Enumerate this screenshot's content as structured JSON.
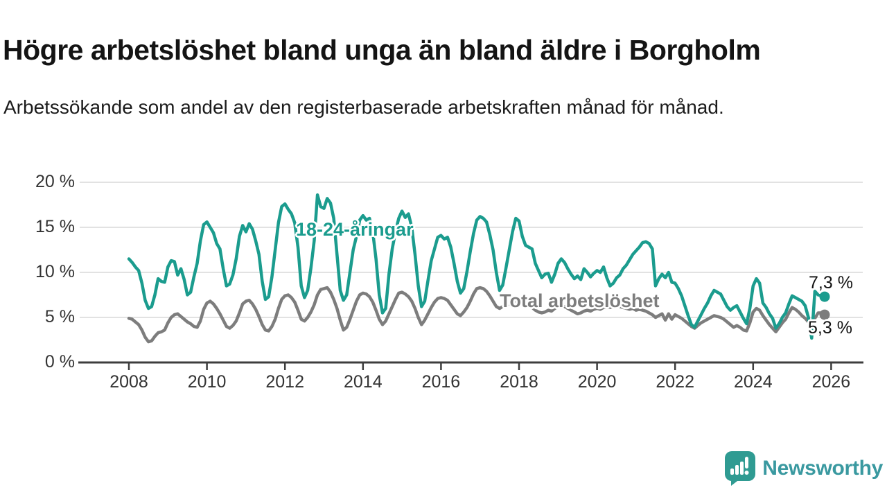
{
  "header": {
    "title": "Högre arbetslöshet bland unga än bland äldre i Borgholm",
    "subtitle": "Arbetssökande som andel av den registerbaserade arbetskraften månad för månad."
  },
  "chart_data": {
    "type": "line",
    "title": "Högre arbetslöshet bland unga än bland äldre i Borgholm",
    "subtitle": "Arbetssökande som andel av den registerbaserade arbetskraften månad för månad.",
    "unit": "%",
    "x_start": "2008-01",
    "x_end": "2025-11",
    "x_tick_labels": [
      "2008",
      "2010",
      "2012",
      "2014",
      "2016",
      "2018",
      "2020",
      "2022",
      "2024",
      "2026"
    ],
    "y_tick_values": [
      0,
      5,
      10,
      15,
      20
    ],
    "y_tick_labels": [
      "0 %",
      "5 %",
      "10 %",
      "15 %",
      "20 %"
    ],
    "ylim": [
      0,
      20
    ],
    "grid": true,
    "legend_position": "inline-labels",
    "series": [
      {
        "id": "youth",
        "label": "18-24-åringar",
        "color": "#1b9c8e",
        "end_label": "7,3 %",
        "end_value": 7.3,
        "values": [
          11.5,
          11.1,
          10.6,
          10.2,
          8.8,
          6.9,
          6.0,
          6.2,
          7.5,
          9.3,
          9.0,
          8.9,
          10.6,
          11.3,
          11.2,
          9.7,
          10.4,
          9.2,
          7.5,
          7.8,
          9.5,
          11.0,
          13.5,
          15.3,
          15.6,
          15.0,
          14.4,
          13.2,
          12.6,
          10.4,
          8.5,
          8.7,
          9.7,
          11.5,
          14.0,
          15.2,
          14.5,
          15.4,
          14.8,
          13.5,
          12.0,
          9.0,
          7.0,
          7.3,
          9.5,
          12.5,
          15.5,
          17.3,
          17.6,
          17.0,
          16.5,
          15.5,
          12.8,
          8.5,
          7.2,
          8.0,
          10.5,
          13.5,
          18.6,
          17.3,
          17.1,
          18.2,
          17.7,
          16.0,
          12.0,
          8.0,
          6.9,
          7.5,
          10.0,
          12.5,
          14.0,
          15.8,
          16.3,
          15.8,
          16.0,
          14.5,
          11.5,
          7.5,
          5.5,
          6.0,
          9.8,
          12.6,
          14.5,
          16.0,
          16.8,
          16.1,
          16.5,
          15.0,
          12.0,
          8.5,
          6.2,
          6.8,
          9.1,
          11.3,
          12.6,
          13.9,
          14.1,
          13.7,
          13.9,
          12.8,
          11.0,
          9.0,
          7.7,
          8.2,
          10.1,
          12.3,
          14.3,
          15.8,
          16.2,
          16.0,
          15.6,
          14.2,
          12.5,
          10.0,
          8.0,
          8.6,
          10.5,
          12.5,
          14.5,
          16.0,
          15.7,
          14.0,
          13.0,
          12.8,
          12.6,
          11.0,
          10.2,
          9.4,
          9.8,
          9.9,
          8.9,
          9.8,
          11.0,
          11.5,
          11.1,
          10.4,
          9.8,
          9.3,
          9.6,
          9.2,
          10.4,
          10.0,
          9.5,
          9.9,
          10.2,
          10.0,
          10.6,
          9.4,
          8.5,
          8.8,
          9.4,
          9.7,
          10.4,
          10.8,
          11.4,
          12.0,
          12.4,
          12.8,
          13.3,
          13.4,
          13.2,
          12.6,
          8.5,
          9.3,
          9.8,
          9.4,
          10.0,
          8.9,
          8.8,
          8.2,
          7.4,
          6.3,
          5.2,
          4.2,
          3.9,
          4.6,
          5.3,
          6.0,
          6.6,
          7.4,
          8.0,
          7.8,
          7.6,
          6.9,
          6.2,
          5.8,
          6.1,
          6.3,
          5.6,
          4.9,
          4.3,
          6.0,
          8.5,
          9.3,
          8.8,
          6.6,
          6.1,
          5.4,
          4.9,
          3.8,
          4.3,
          5.0,
          5.5,
          6.5,
          7.4,
          7.2,
          7.0,
          6.8,
          6.3,
          5.0,
          2.7,
          7.9,
          7.5,
          7.4,
          7.3
        ]
      },
      {
        "id": "total",
        "label": "Total arbetslöshet",
        "color": "#7d7d7d",
        "end_label": "5,3 %",
        "end_value": 5.3,
        "values": [
          4.9,
          4.8,
          4.5,
          4.2,
          3.6,
          2.8,
          2.3,
          2.4,
          2.9,
          3.3,
          3.4,
          3.6,
          4.4,
          5.0,
          5.3,
          5.4,
          5.1,
          4.8,
          4.5,
          4.3,
          4.0,
          3.9,
          4.6,
          5.9,
          6.6,
          6.8,
          6.5,
          6.0,
          5.4,
          4.7,
          4.0,
          3.8,
          4.1,
          4.6,
          5.5,
          6.5,
          6.8,
          6.9,
          6.5,
          5.9,
          5.1,
          4.2,
          3.6,
          3.5,
          4.0,
          4.8,
          6.0,
          7.0,
          7.4,
          7.5,
          7.2,
          6.7,
          5.8,
          4.8,
          4.6,
          5.0,
          5.6,
          6.4,
          7.5,
          8.1,
          8.2,
          8.3,
          7.8,
          7.0,
          6.0,
          4.7,
          3.6,
          3.9,
          4.8,
          5.8,
          6.8,
          7.5,
          7.7,
          7.6,
          7.3,
          6.7,
          5.8,
          4.8,
          4.2,
          4.6,
          5.4,
          6.2,
          7.0,
          7.7,
          7.8,
          7.6,
          7.3,
          6.8,
          6.0,
          5.0,
          4.2,
          4.7,
          5.4,
          6.1,
          6.7,
          7.1,
          7.2,
          7.1,
          6.9,
          6.4,
          5.9,
          5.4,
          5.2,
          5.6,
          6.1,
          6.8,
          7.6,
          8.2,
          8.3,
          8.2,
          7.9,
          7.4,
          6.8,
          6.2,
          6.0,
          6.2,
          6.3,
          6.5,
          6.6,
          6.9,
          7.0,
          6.8,
          6.5,
          6.3,
          6.1,
          5.8,
          5.6,
          5.5,
          5.6,
          5.8,
          5.7,
          6.0,
          6.2,
          6.3,
          6.2,
          6.0,
          5.8,
          5.6,
          5.4,
          5.5,
          5.7,
          5.8,
          5.7,
          5.9,
          6.0,
          5.9,
          6.1,
          6.2,
          6.1,
          6.2,
          6.3,
          6.2,
          6.1,
          6.0,
          5.9,
          6.0,
          5.8,
          5.9,
          5.8,
          5.7,
          5.5,
          5.3,
          5.0,
          5.2,
          5.4,
          4.7,
          5.4,
          4.8,
          5.3,
          5.1,
          4.9,
          4.6,
          4.3,
          4.0,
          3.8,
          4.1,
          4.4,
          4.6,
          4.8,
          5.0,
          5.2,
          5.1,
          5.0,
          4.8,
          4.5,
          4.2,
          3.9,
          4.1,
          3.9,
          3.6,
          3.5,
          4.4,
          5.6,
          6.0,
          5.8,
          5.2,
          4.7,
          4.2,
          3.8,
          3.4,
          3.9,
          4.4,
          4.8,
          5.5,
          6.1,
          5.9,
          5.6,
          5.2,
          4.9,
          4.5,
          4.1,
          4.9,
          5.5,
          5.5,
          5.3
        ]
      }
    ]
  },
  "logo": {
    "text": "Newsworthy",
    "icon": "newsworthy-chart-bubble-icon",
    "icon_color": "#2f9b92",
    "text_color": "#3a99a0"
  },
  "colors": {
    "accent_teal": "#1b9c8e",
    "accent_gray": "#7d7d7d",
    "grid": "#d9d9d9",
    "axis_line": "#3d3d3d",
    "axis_text": "#333333"
  }
}
